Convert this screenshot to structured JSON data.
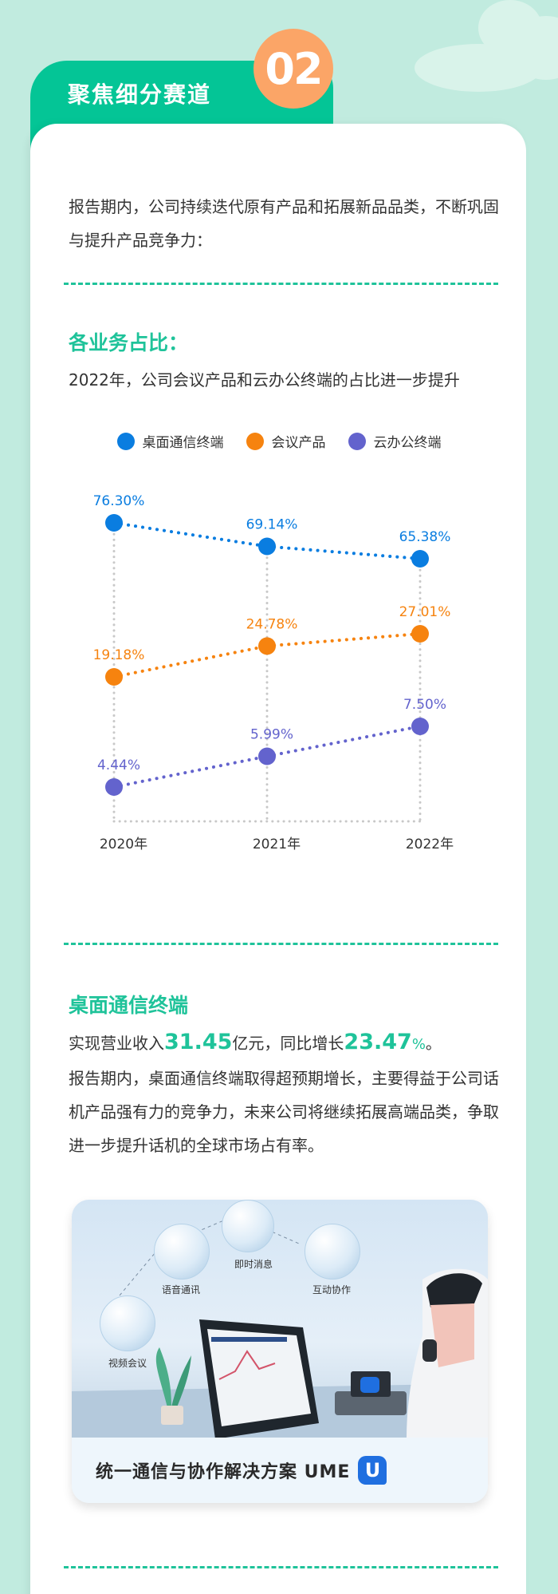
{
  "header": {
    "section_number": "02",
    "section_title": "聚焦细分赛道"
  },
  "intro": {
    "text": "报告期内，公司持续迭代原有产品和拓展新品品类，不断巩固与提升产品竞争力："
  },
  "share_section": {
    "heading": "各业务占比：",
    "subtitle": "2022年，公司会议产品和云办公终端的占比进一步提升"
  },
  "chart_data": {
    "type": "line",
    "title": "各业务占比",
    "categories": [
      "2020年",
      "2021年",
      "2022年"
    ],
    "series": [
      {
        "name": "桌面通信终端",
        "color": "#0a7de0",
        "values": [
          76.3,
          69.14,
          65.38
        ],
        "labels": [
          "76.30%",
          "69.14%",
          "65.38%"
        ]
      },
      {
        "name": "会议产品",
        "color": "#f6830f",
        "values": [
          19.18,
          24.78,
          27.01
        ],
        "labels": [
          "19.18%",
          "24.78%",
          "27.01%"
        ]
      },
      {
        "name": "云办公终端",
        "color": "#6363cd",
        "values": [
          4.44,
          5.99,
          7.5
        ],
        "labels": [
          "4.44%",
          "5.99%",
          "7.50%"
        ]
      }
    ],
    "xlabel": "",
    "ylabel": "",
    "unit": "%",
    "legend": "top-center",
    "grid": "dotted vertical"
  },
  "desktop_section": {
    "heading": "桌面通信终端",
    "revenue_prefix": "实现营业收入",
    "revenue_value": "31.45",
    "revenue_unit": "亿元，同比增长",
    "growth_value": "23.47",
    "growth_unit": "%",
    "growth_suffix": "。",
    "body": "报告期内，桌面通信终端取得超预期增长，主要得益于公司话机产品强有力的竞争力，未来公司将继续拓展高端品类，争取进一步提升话机的全球市场占有率。"
  },
  "illustration": {
    "features": [
      "视频会议",
      "语音通讯",
      "即时消息",
      "互动协作"
    ],
    "caption": "统一通信与协作解决方案 UME",
    "logo_letter": "U"
  }
}
